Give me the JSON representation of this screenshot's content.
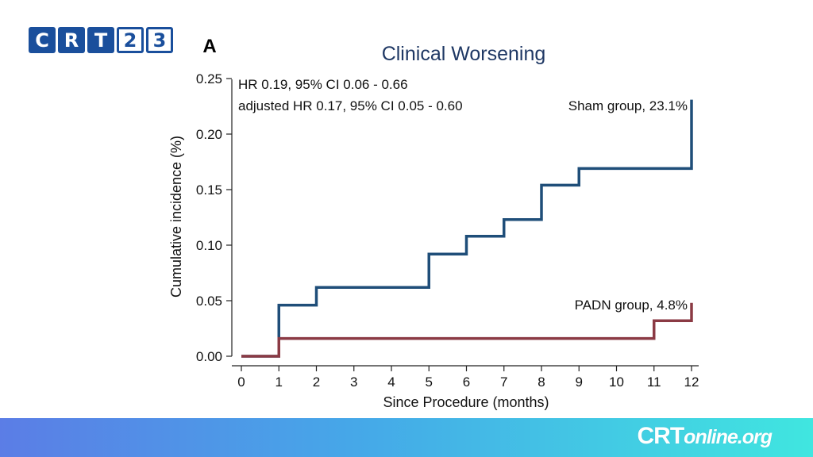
{
  "logo": {
    "letters": [
      "C",
      "R",
      "T",
      "2",
      "3"
    ]
  },
  "panel_label": "A",
  "footer": {
    "brand_prefix": "CRT",
    "brand_suffix": "online.org"
  },
  "colors": {
    "sham": "#1f4e79",
    "padn": "#8b3a44",
    "logo": "#1a4f9c"
  },
  "chart_data": {
    "type": "step",
    "title": "Clinical Worsening",
    "xlabel": "Since Procedure (months)",
    "ylabel": "Cumulative incidence (%)",
    "xlim": [
      0,
      12
    ],
    "ylim": [
      0,
      0.25
    ],
    "xticks": [
      0,
      1,
      2,
      3,
      4,
      5,
      6,
      7,
      8,
      9,
      10,
      11,
      12
    ],
    "yticks": [
      0.0,
      0.05,
      0.1,
      0.15,
      0.2,
      0.25
    ],
    "ytick_labels": [
      "0.00",
      "0.05",
      "0.10",
      "0.15",
      "0.20",
      "0.25"
    ],
    "annotations": [
      "HR 0.19, 95% CI 0.06 - 0.66",
      "adjusted HR 0.17, 95% CI 0.05 - 0.60"
    ],
    "series": [
      {
        "name": "Sham group",
        "label": "Sham group, 23.1%",
        "color": "#1f4e79",
        "points": [
          [
            0,
            0
          ],
          [
            1,
            0.046
          ],
          [
            2,
            0.062
          ],
          [
            5,
            0.092
          ],
          [
            6,
            0.108
          ],
          [
            7,
            0.123
          ],
          [
            8,
            0.154
          ],
          [
            9,
            0.169
          ],
          [
            12,
            0.231
          ]
        ]
      },
      {
        "name": "PADN group",
        "label": "PADN group, 4.8%",
        "color": "#8b3a44",
        "points": [
          [
            0,
            0
          ],
          [
            1,
            0.016
          ],
          [
            11,
            0.032
          ],
          [
            12,
            0.048
          ]
        ]
      }
    ]
  }
}
